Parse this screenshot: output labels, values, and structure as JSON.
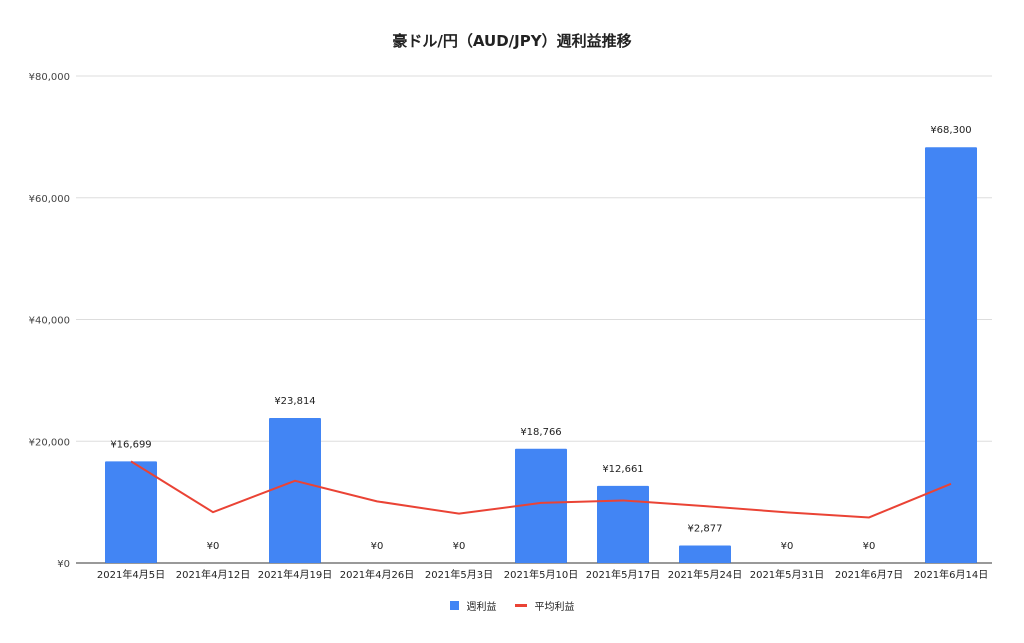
{
  "chart_data": {
    "type": "bar",
    "title": "豪ドル/円（AUD/JPY）週利益推移",
    "xlabel": "",
    "ylabel": "",
    "ylim": [
      0,
      80000
    ],
    "yticks": [
      "¥0",
      "¥20,000",
      "¥40,000",
      "¥60,000",
      "¥80,000"
    ],
    "ytick_values": [
      0,
      20000,
      40000,
      60000,
      80000
    ],
    "grid": true,
    "legend_position": "bottom",
    "categories": [
      "2021年4月5日",
      "2021年4月12日",
      "2021年4月19日",
      "2021年4月26日",
      "2021年5月3日",
      "2021年5月10日",
      "2021年5月17日",
      "2021年5月24日",
      "2021年5月31日",
      "2021年6月7日",
      "2021年6月14日"
    ],
    "series": [
      {
        "name": "週利益",
        "type": "bar",
        "color": "#4285f4",
        "values": [
          16699,
          0,
          23814,
          0,
          0,
          18766,
          12661,
          2877,
          0,
          0,
          68300
        ],
        "labels": [
          "¥16,699",
          "¥0",
          "¥23,814",
          "¥0",
          "¥0",
          "¥18,766",
          "¥12,661",
          "¥2,877",
          "¥0",
          "¥0",
          "¥68,300"
        ]
      },
      {
        "name": "平均利益",
        "type": "line",
        "color": "#ea4335",
        "values": [
          16699,
          8350,
          13504,
          10128,
          8103,
          9879,
          10277,
          9352,
          8313,
          7482,
          13011
        ]
      }
    ]
  },
  "legend": {
    "bar_label": "週利益",
    "line_label": "平均利益"
  }
}
